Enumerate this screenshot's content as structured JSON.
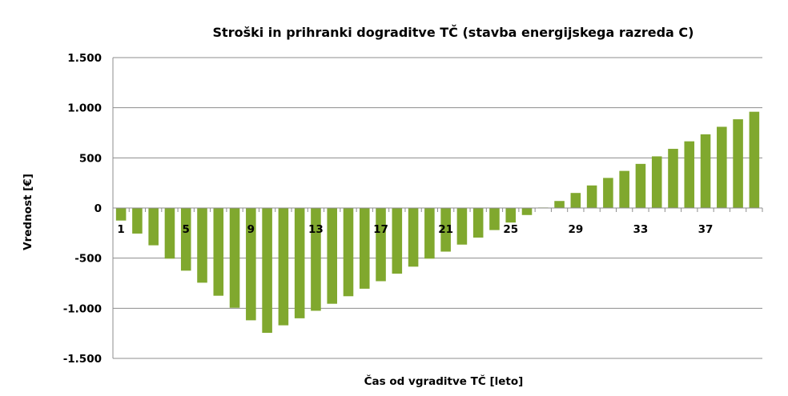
{
  "chart_data": {
    "type": "bar",
    "title": "Stroški in prihranki dogradi­tve TČ (stavba energijskega razreda C)",
    "xlabel": "Čas od vgradi­tve TČ [leto]",
    "ylabel": "Vrednost [€]",
    "ylim": [
      -1500,
      1500
    ],
    "y_ticks": [
      -1500,
      -1000,
      -500,
      0,
      500,
      1000,
      1500
    ],
    "y_tick_labels": [
      "-1.500",
      "-1.000",
      "-500",
      "0",
      "500",
      "1.000",
      "1.500"
    ],
    "x_tick_labels": [
      "1",
      "5",
      "9",
      "13",
      "17",
      "21",
      "25",
      "29",
      "33",
      "37"
    ],
    "x_tick_indices": [
      1,
      5,
      9,
      13,
      17,
      21,
      25,
      29,
      33,
      37
    ],
    "grid": true,
    "bar_color": "#80a82e",
    "categories": [
      1,
      2,
      3,
      4,
      5,
      6,
      7,
      8,
      9,
      10,
      11,
      12,
      13,
      14,
      15,
      16,
      17,
      18,
      19,
      20,
      21,
      22,
      23,
      24,
      25,
      26,
      27,
      28,
      29,
      30,
      31,
      32,
      33,
      34,
      35,
      36,
      37,
      38,
      39,
      40
    ],
    "values": [
      -125,
      -255,
      -372,
      -505,
      -625,
      -745,
      -875,
      -995,
      -1120,
      -1245,
      -1170,
      -1100,
      -1025,
      -955,
      -880,
      -805,
      -730,
      -655,
      -585,
      -505,
      -435,
      -365,
      -295,
      -220,
      -145,
      -70,
      5,
      70,
      150,
      225,
      300,
      370,
      440,
      515,
      590,
      665,
      735,
      810,
      885,
      960
    ]
  }
}
